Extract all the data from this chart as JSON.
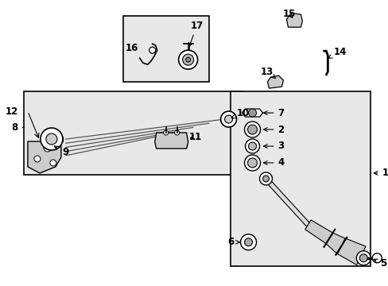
{
  "bg_color": "#ffffff",
  "box_fill": "#e0e0e0",
  "box_edge": "#000000",
  "fig_width": 4.89,
  "fig_height": 3.6,
  "dpi": 100
}
